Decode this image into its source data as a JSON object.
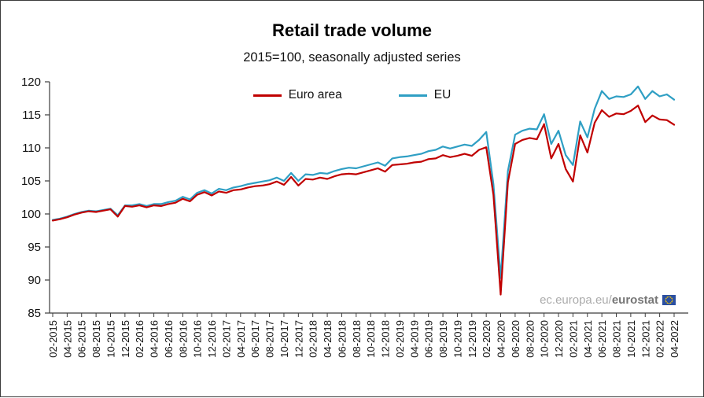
{
  "watermark": {
    "prefix": "ec.europa.eu/",
    "brand": "eurostat"
  },
  "chart_data": {
    "type": "line",
    "title": "Retail trade volume",
    "subtitle": "2015=100, seasonally adjusted series",
    "xlabel": "",
    "ylabel": "",
    "ylim": [
      85,
      120
    ],
    "ytick_step": 5,
    "x_tick_every": 2,
    "grid": false,
    "legend_position": "top-center",
    "axis_color": "#3c3c3c",
    "x": [
      "02-2015",
      "03-2015",
      "04-2015",
      "05-2015",
      "06-2015",
      "07-2015",
      "08-2015",
      "09-2015",
      "10-2015",
      "11-2015",
      "12-2015",
      "01-2016",
      "02-2016",
      "03-2016",
      "04-2016",
      "05-2016",
      "06-2016",
      "07-2016",
      "08-2016",
      "09-2016",
      "10-2016",
      "11-2016",
      "12-2016",
      "01-2017",
      "02-2017",
      "03-2017",
      "04-2017",
      "05-2017",
      "06-2017",
      "07-2017",
      "08-2017",
      "09-2017",
      "10-2017",
      "11-2017",
      "12-2017",
      "01-2018",
      "02-2018",
      "03-2018",
      "04-2018",
      "05-2018",
      "06-2018",
      "07-2018",
      "08-2018",
      "09-2018",
      "10-2018",
      "11-2018",
      "12-2018",
      "01-2019",
      "02-2019",
      "03-2019",
      "04-2019",
      "05-2019",
      "06-2019",
      "07-2019",
      "08-2019",
      "09-2019",
      "10-2019",
      "11-2019",
      "12-2019",
      "01-2020",
      "02-2020",
      "03-2020",
      "04-2020",
      "05-2020",
      "06-2020",
      "07-2020",
      "08-2020",
      "09-2020",
      "10-2020",
      "11-2020",
      "12-2020",
      "01-2021",
      "02-2021",
      "03-2021",
      "04-2021",
      "05-2021",
      "06-2021",
      "07-2021",
      "08-2021",
      "09-2021",
      "10-2021",
      "11-2021",
      "12-2021",
      "01-2022",
      "02-2022",
      "03-2022",
      "04-2022"
    ],
    "series": [
      {
        "name": "Euro area",
        "color": "#c00000",
        "values": [
          99.0,
          99.2,
          99.5,
          99.9,
          100.2,
          100.4,
          100.3,
          100.5,
          100.7,
          99.6,
          101.2,
          101.1,
          101.3,
          101.0,
          101.3,
          101.2,
          101.5,
          101.7,
          102.3,
          101.9,
          102.9,
          103.3,
          102.8,
          103.4,
          103.2,
          103.6,
          103.7,
          104.0,
          104.2,
          104.3,
          104.5,
          104.9,
          104.4,
          105.6,
          104.3,
          105.3,
          105.2,
          105.5,
          105.3,
          105.7,
          106.0,
          106.1,
          106.0,
          106.3,
          106.6,
          106.9,
          106.4,
          107.4,
          107.5,
          107.6,
          107.8,
          107.9,
          108.3,
          108.4,
          108.9,
          108.6,
          108.8,
          109.1,
          108.8,
          109.7,
          110.1,
          102.9,
          87.8,
          104.8,
          110.6,
          111.2,
          111.5,
          111.3,
          113.6,
          108.4,
          110.6,
          106.8,
          104.9,
          111.9,
          109.3,
          113.8,
          115.7,
          114.7,
          115.2,
          115.1,
          115.6,
          116.4,
          113.9,
          114.9,
          114.3,
          114.2,
          113.5
        ]
      },
      {
        "name": "EU",
        "color": "#2f9fc4",
        "values": [
          99.1,
          99.3,
          99.6,
          100.0,
          100.3,
          100.5,
          100.4,
          100.6,
          100.8,
          99.8,
          101.3,
          101.3,
          101.5,
          101.2,
          101.5,
          101.5,
          101.8,
          102.0,
          102.6,
          102.2,
          103.2,
          103.6,
          103.1,
          103.8,
          103.6,
          104.0,
          104.2,
          104.5,
          104.7,
          104.9,
          105.1,
          105.5,
          105.0,
          106.2,
          105.0,
          106.0,
          105.9,
          106.2,
          106.1,
          106.5,
          106.8,
          107.0,
          106.9,
          107.2,
          107.5,
          107.8,
          107.3,
          108.4,
          108.6,
          108.7,
          108.9,
          109.1,
          109.5,
          109.7,
          110.2,
          109.9,
          110.2,
          110.5,
          110.3,
          111.2,
          112.4,
          104.5,
          90.3,
          106.5,
          112.0,
          112.6,
          112.9,
          112.8,
          115.1,
          110.6,
          112.6,
          108.9,
          107.4,
          114.0,
          111.6,
          115.9,
          118.6,
          117.4,
          117.8,
          117.7,
          118.1,
          119.3,
          117.4,
          118.6,
          117.8,
          118.1,
          117.3
        ]
      }
    ]
  }
}
